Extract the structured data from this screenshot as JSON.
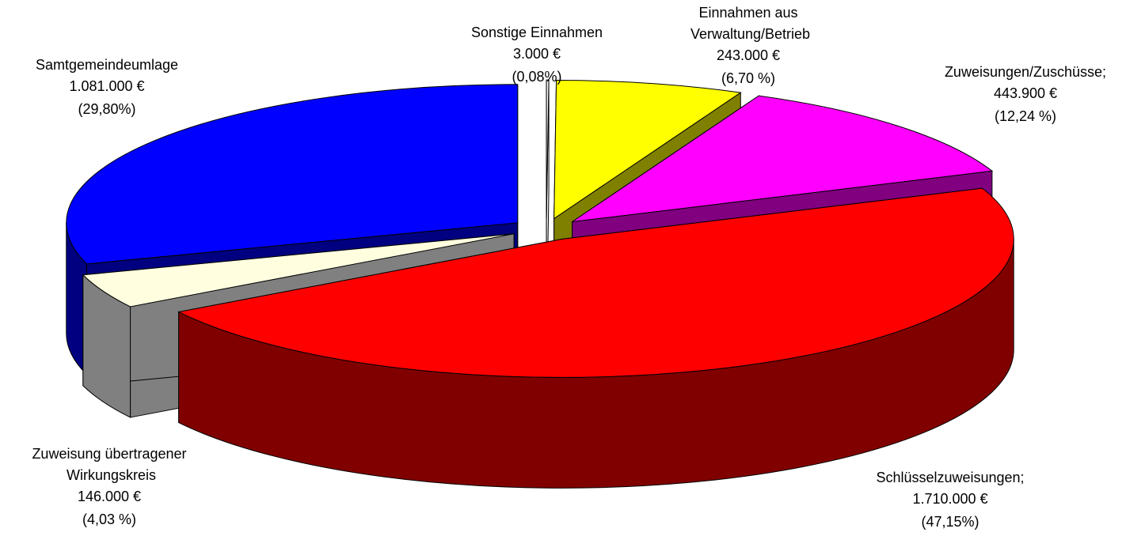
{
  "chart_data": {
    "type": "pie",
    "categories": [
      "Sonstige Einnahmen",
      "Einnahmen aus Verwaltung/Betrieb",
      "Zuweisungen/Zuschüsse;",
      "Schlüsselzuweisungen;",
      "Zuweisung übertragener Wirkungskreis",
      "Samtgemeindeumlage"
    ],
    "values": [
      3000,
      243000,
      443900,
      1710000,
      146000,
      1081000
    ],
    "value_labels": [
      "3.000 €",
      "243.000 €",
      "443.900 €",
      "1.710.000 €",
      "146.000 €",
      "1.081.000 €"
    ],
    "percent_labels": [
      "(0,08%)",
      "(6,70 %)",
      "(12,24 %)",
      "(47,15%)",
      "(4,03 %)",
      "(29,80%)"
    ],
    "colors": [
      "#ffffff",
      "#ffff00",
      "#ff00ff",
      "#ff0000",
      "#ffffe0",
      "#0000ff"
    ],
    "side_colors": [
      "#ffffff",
      "#808000",
      "#800080",
      "#800000",
      "#808080",
      "#000080"
    ]
  }
}
